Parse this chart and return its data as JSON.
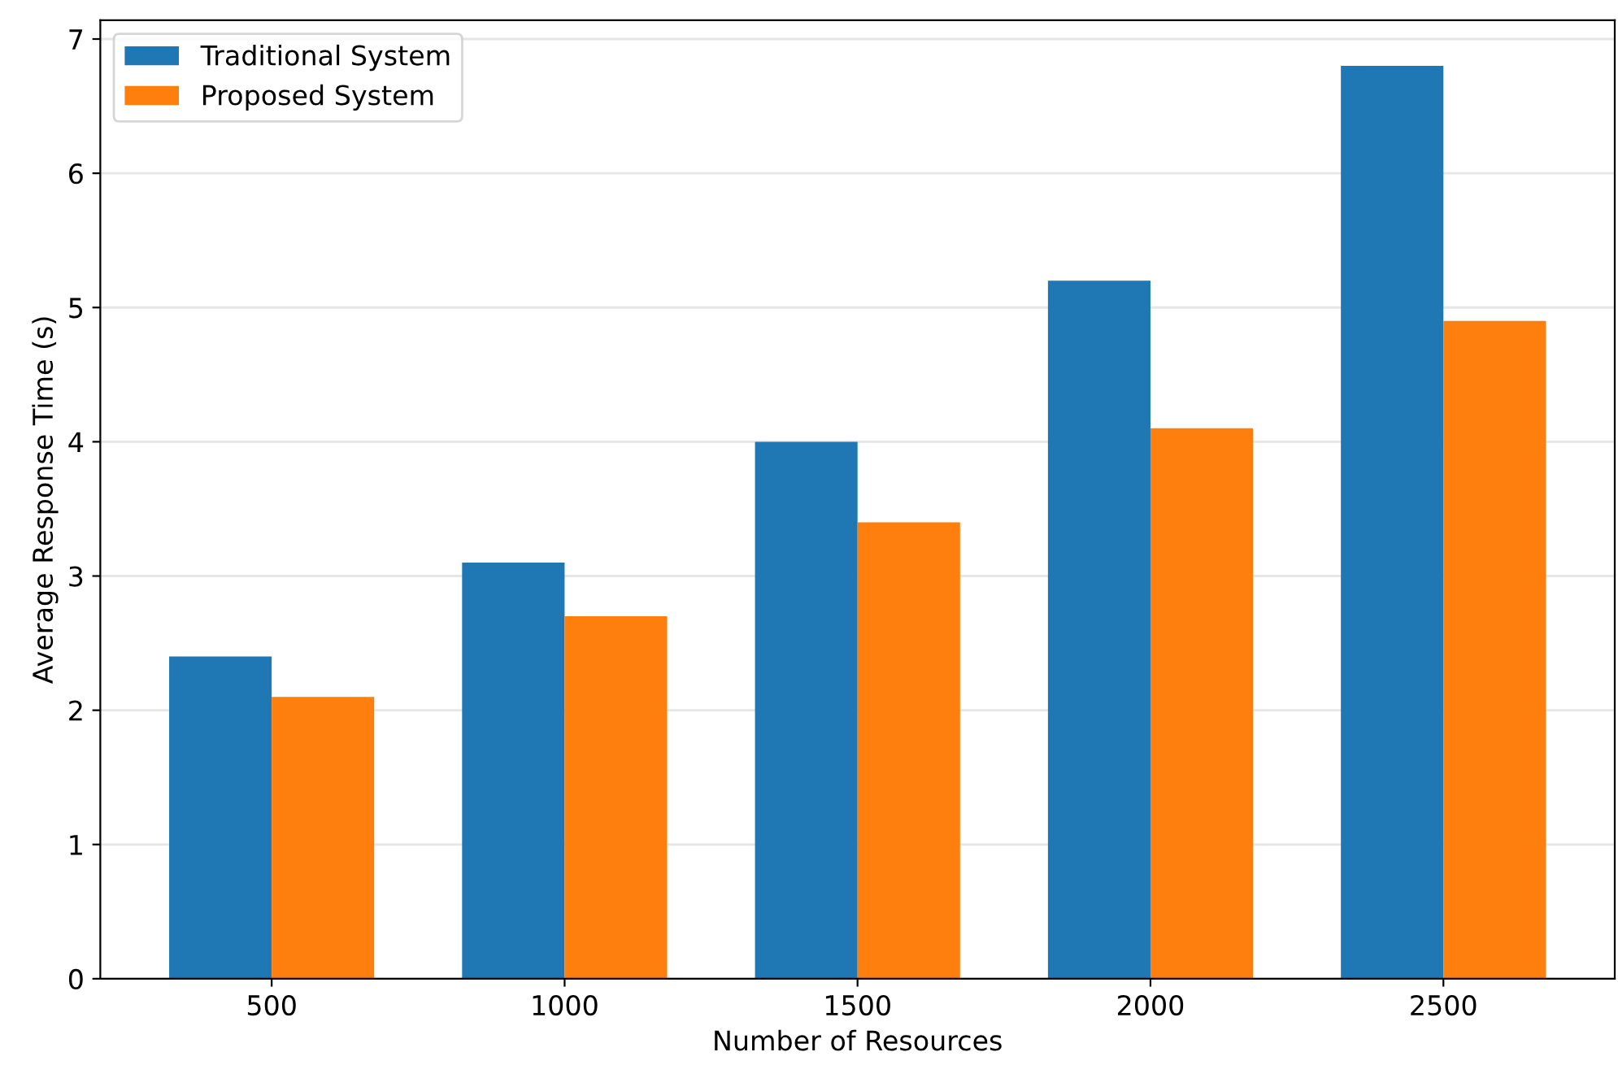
{
  "chart_data": {
    "type": "bar",
    "xlabel": "Number of Resources",
    "ylabel": "Average Response Time (s)",
    "categories": [
      "500",
      "1000",
      "1500",
      "2000",
      "2500"
    ],
    "series": [
      {
        "name": "Traditional System",
        "color": "#1f77b4",
        "values": [
          2.4,
          3.1,
          4.0,
          5.2,
          6.8
        ]
      },
      {
        "name": "Proposed System",
        "color": "#ff7f0e",
        "values": [
          2.1,
          2.7,
          3.4,
          4.1,
          4.9
        ]
      }
    ],
    "ylim": [
      0,
      7.14
    ],
    "yticks": [
      0,
      1,
      2,
      3,
      4,
      5,
      6,
      7
    ],
    "grid": "y",
    "legend": "top left"
  }
}
